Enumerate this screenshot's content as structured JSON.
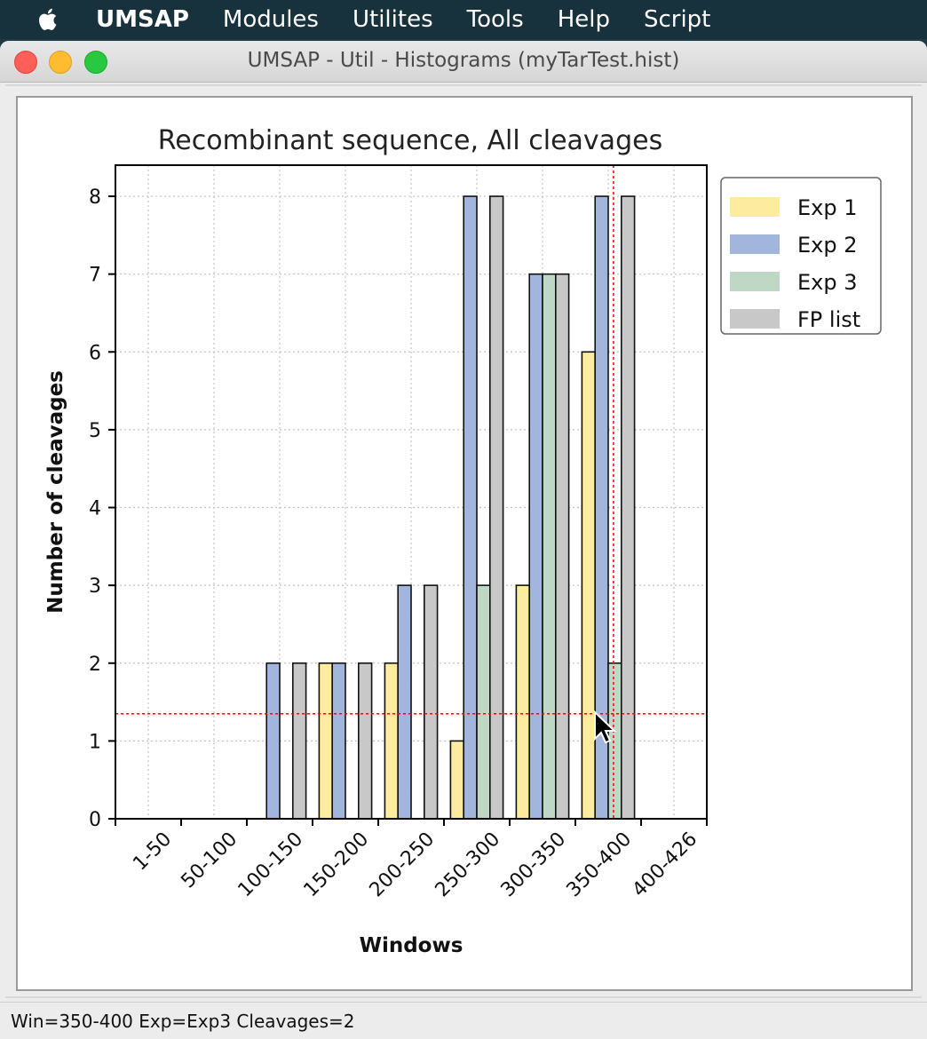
{
  "menubar": {
    "app_name": "UMSAP",
    "items": [
      "Modules",
      "Utilites",
      "Tools",
      "Help",
      "Script"
    ]
  },
  "window": {
    "title": "UMSAP - Util - Histograms (myTarTest.hist)"
  },
  "status": {
    "text": "Win=350-400  Exp=Exp3  Cleavages=2"
  },
  "colors": {
    "Exp 1": "#fdeba0",
    "Exp 2": "#a2b5dc",
    "Exp 3": "#bfd8c6",
    "FP list": "#c8c8c8",
    "crosshair": "#ff0000"
  },
  "chart_data": {
    "type": "bar",
    "title": "Recombinant sequence, All cleavages",
    "xlabel": "Windows",
    "ylabel": "Number of cleavages",
    "ylim": [
      0,
      8.4
    ],
    "yticks": [
      0,
      1,
      2,
      3,
      4,
      5,
      6,
      7,
      8
    ],
    "grid": true,
    "legend_position": "outside-right-top",
    "categories": [
      "1-50",
      "50-100",
      "100-150",
      "150-200",
      "200-250",
      "250-300",
      "300-350",
      "350-400",
      "400-426"
    ],
    "series": [
      {
        "name": "Exp 1",
        "values": [
          0,
          0,
          0,
          2,
          2,
          1,
          3,
          6,
          0
        ]
      },
      {
        "name": "Exp 2",
        "values": [
          0,
          0,
          2,
          2,
          3,
          8,
          7,
          8,
          0
        ]
      },
      {
        "name": "Exp 3",
        "values": [
          0,
          0,
          0,
          0,
          0,
          3,
          7,
          2,
          0
        ]
      },
      {
        "name": "FP list",
        "values": [
          0,
          0,
          2,
          2,
          3,
          8,
          7,
          8,
          0
        ]
      }
    ],
    "crosshair": {
      "x_category": "350-400",
      "y": 1.35
    }
  }
}
